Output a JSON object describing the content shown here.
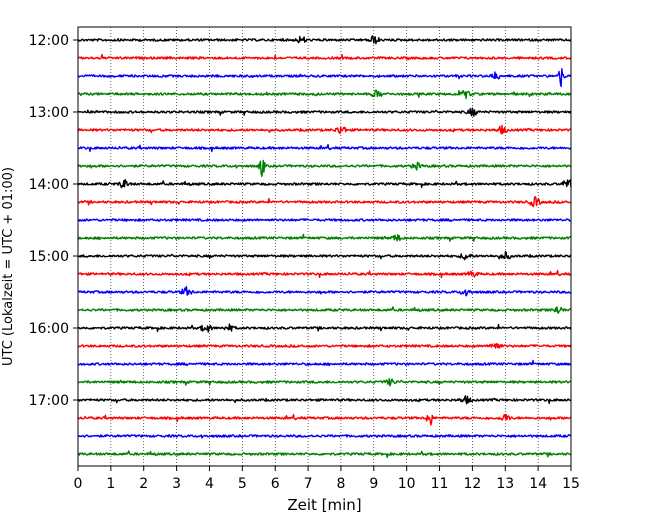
{
  "chart_data": {
    "type": "line",
    "title": "",
    "xlabel": "Zeit  [min]",
    "ylabel": "UTC (Lokalzeit = UTC + 01:00)",
    "xlim": [
      0,
      15
    ],
    "xticks": [
      0,
      1,
      2,
      3,
      4,
      5,
      6,
      7,
      8,
      9,
      10,
      11,
      12,
      13,
      14,
      15
    ],
    "grid": "vertical dotted",
    "yticks": [
      {
        "row": 0,
        "label": "12:00"
      },
      {
        "row": 4,
        "label": "13:00"
      },
      {
        "row": 8,
        "label": "14:00"
      },
      {
        "row": 12,
        "label": "15:00"
      },
      {
        "row": 16,
        "label": "16:00"
      },
      {
        "row": 20,
        "label": "17:00"
      }
    ],
    "trace_colors": [
      "#000000",
      "#ff0000",
      "#0000ff",
      "#008000"
    ],
    "traces": [
      {
        "start": "12:00",
        "color": "#000000",
        "events": [
          {
            "t": 9.0,
            "amp": 0.35
          },
          {
            "t": 6.8,
            "amp": 0.3
          }
        ]
      },
      {
        "start": "12:15",
        "color": "#ff0000",
        "events": []
      },
      {
        "start": "12:30",
        "color": "#0000ff",
        "events": [
          {
            "t": 14.7,
            "amp": 0.9
          },
          {
            "t": 12.7,
            "amp": 0.3
          }
        ]
      },
      {
        "start": "12:45",
        "color": "#008000",
        "events": [
          {
            "t": 9.1,
            "amp": 0.3
          },
          {
            "t": 11.8,
            "amp": 0.3
          }
        ]
      },
      {
        "start": "13:00",
        "color": "#000000",
        "events": [
          {
            "t": 12.0,
            "amp": 0.3
          }
        ]
      },
      {
        "start": "13:15",
        "color": "#ff0000",
        "events": [
          {
            "t": 8.0,
            "amp": 0.35
          },
          {
            "t": 12.9,
            "amp": 0.3
          }
        ]
      },
      {
        "start": "13:30",
        "color": "#0000ff",
        "events": []
      },
      {
        "start": "13:45",
        "color": "#008000",
        "events": [
          {
            "t": 5.6,
            "amp": 0.9
          },
          {
            "t": 10.3,
            "amp": 0.25
          }
        ]
      },
      {
        "start": "14:00",
        "color": "#000000",
        "events": [
          {
            "t": 1.4,
            "amp": 0.35
          },
          {
            "t": 14.9,
            "amp": 0.4
          }
        ]
      },
      {
        "start": "14:15",
        "color": "#ff0000",
        "events": [
          {
            "t": 13.9,
            "amp": 0.4
          }
        ]
      },
      {
        "start": "14:30",
        "color": "#0000ff",
        "events": []
      },
      {
        "start": "14:45",
        "color": "#008000",
        "events": [
          {
            "t": 9.7,
            "amp": 0.25
          }
        ]
      },
      {
        "start": "15:00",
        "color": "#000000",
        "events": [
          {
            "t": 13.0,
            "amp": 0.3
          },
          {
            "t": 11.8,
            "amp": 0.3
          }
        ]
      },
      {
        "start": "15:15",
        "color": "#ff0000",
        "events": [
          {
            "t": 12.0,
            "amp": 0.25
          }
        ]
      },
      {
        "start": "15:30",
        "color": "#0000ff",
        "events": [
          {
            "t": 3.3,
            "amp": 0.35
          },
          {
            "t": 11.8,
            "amp": 0.3
          }
        ]
      },
      {
        "start": "15:45",
        "color": "#008000",
        "events": [
          {
            "t": 14.6,
            "amp": 0.3
          }
        ]
      },
      {
        "start": "16:00",
        "color": "#000000",
        "events": [
          {
            "t": 3.9,
            "amp": 0.35
          },
          {
            "t": 4.6,
            "amp": 0.25
          }
        ]
      },
      {
        "start": "16:15",
        "color": "#ff0000",
        "events": [
          {
            "t": 12.7,
            "amp": 0.35
          }
        ]
      },
      {
        "start": "16:30",
        "color": "#0000ff",
        "events": []
      },
      {
        "start": "16:45",
        "color": "#008000",
        "events": [
          {
            "t": 9.5,
            "amp": 0.25
          }
        ]
      },
      {
        "start": "17:00",
        "color": "#000000",
        "events": [
          {
            "t": 11.8,
            "amp": 0.3
          }
        ]
      },
      {
        "start": "17:15",
        "color": "#ff0000",
        "events": [
          {
            "t": 10.7,
            "amp": 0.9
          },
          {
            "t": 13.0,
            "amp": 0.3
          }
        ]
      },
      {
        "start": "17:30",
        "color": "#0000ff",
        "events": []
      },
      {
        "start": "17:45",
        "color": "#008000",
        "events": []
      }
    ]
  }
}
